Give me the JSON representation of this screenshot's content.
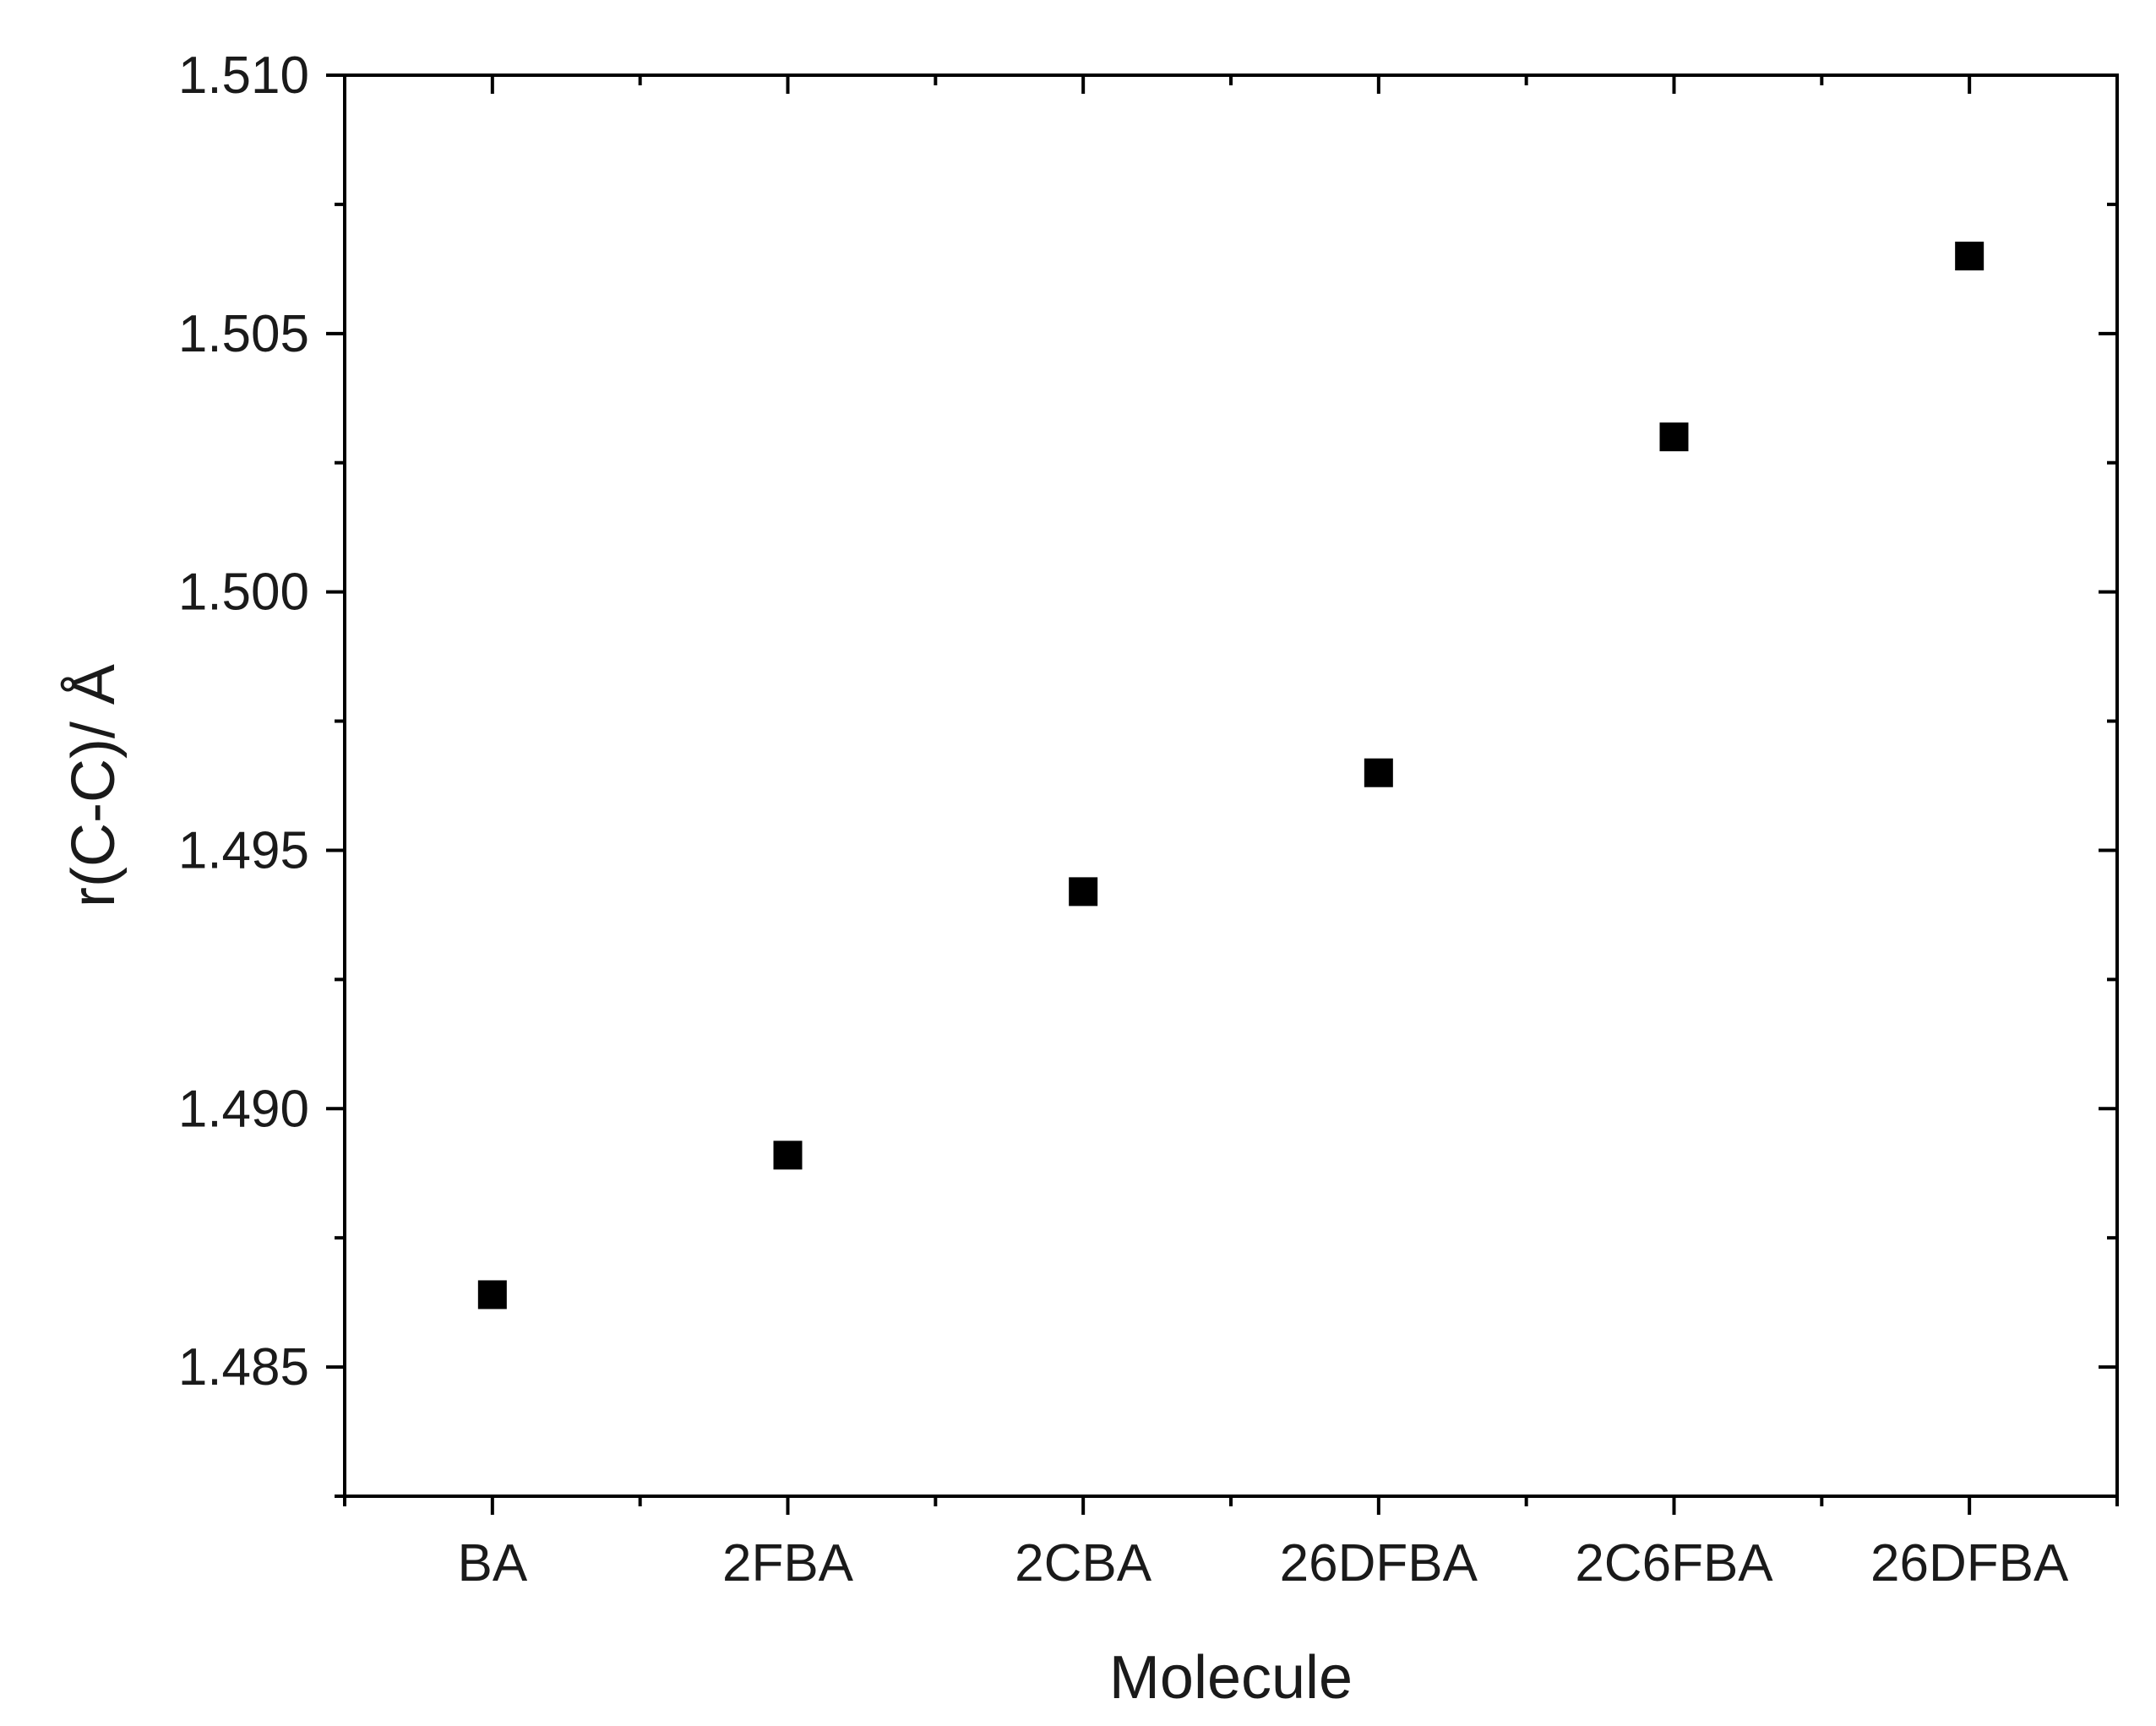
{
  "chart_data": {
    "type": "scatter",
    "title": "",
    "xlabel": "Molecule",
    "ylabel": "r(C-C)/ Å",
    "categories": [
      "BA",
      "2FBA",
      "2CBA",
      "26DFBA",
      "2C6FBA",
      "26DFBA"
    ],
    "values": [
      1.4864,
      1.4891,
      1.4942,
      1.4965,
      1.503,
      1.5065
    ],
    "ylim": [
      1.4825,
      1.51
    ],
    "yticks": [
      "1.485",
      "1.490",
      "1.495",
      "1.500",
      "1.505",
      "1.510"
    ],
    "ytick_values": [
      1.485,
      1.49,
      1.495,
      1.5,
      1.505,
      1.51
    ],
    "marker": "square",
    "marker_color": "#000000",
    "grid": false,
    "legend": "none"
  }
}
